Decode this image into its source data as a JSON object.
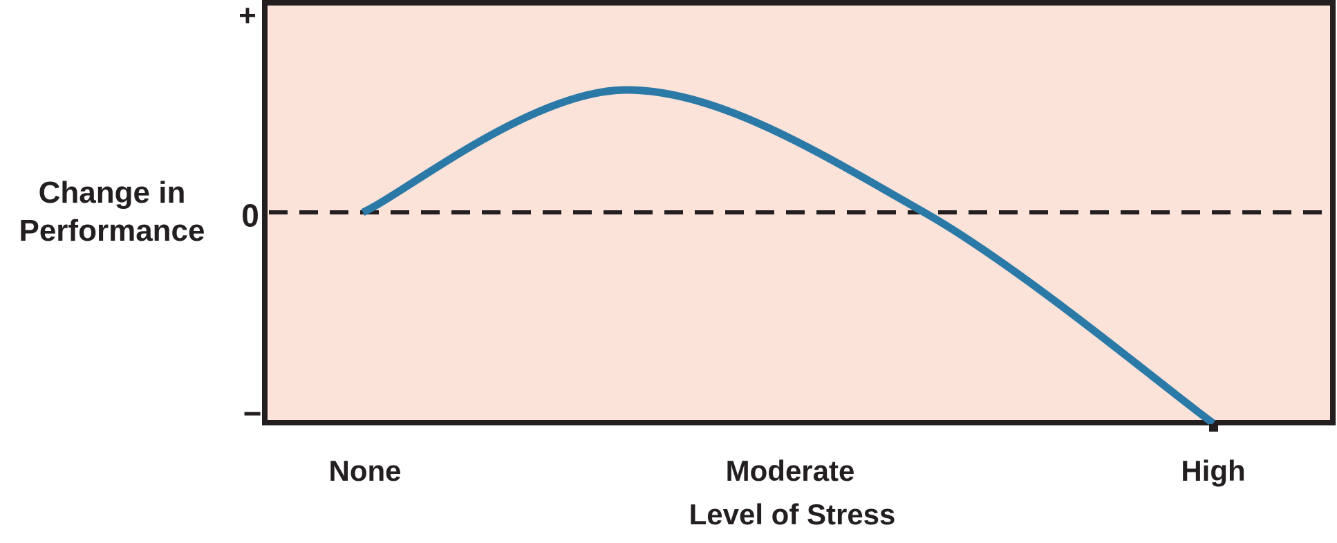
{
  "figure": {
    "background": "#ffffff",
    "plot_background": "#fce3da",
    "axis_color": "#231f20",
    "curve_color": "#2a79a6"
  },
  "chart_data": {
    "type": "line",
    "title": "",
    "xlabel": "Level of Stress",
    "ylabel": "Change in Performance",
    "ylabel_lines": [
      "Change in",
      "Performance"
    ],
    "x_tick_labels": [
      "None",
      "Moderate",
      "High"
    ],
    "y_tick_labels": [
      "+",
      "0",
      "−"
    ],
    "x_range_labels": [
      "None",
      "High"
    ],
    "y_range": [
      -1,
      1
    ],
    "grid": false,
    "legend": false,
    "zero_line": {
      "value": 0,
      "style": "dashed",
      "color": "#231f20"
    },
    "series": [
      {
        "name": "Change in Performance vs Level of Stress",
        "color": "#2a79a6",
        "points": [
          {
            "stress": 0.0,
            "performance": 0.0
          },
          {
            "stress": 0.31,
            "performance": 0.59
          },
          {
            "stress": 0.66,
            "performance": 0.0
          },
          {
            "stress": 1.0,
            "performance": -1.0
          }
        ]
      }
    ],
    "description": "Inverted-U relationship: change in performance starts at zero with no stress, peaks between none and moderate stress, returns to zero shortly after moderate stress, and falls to its lowest point at high stress."
  }
}
